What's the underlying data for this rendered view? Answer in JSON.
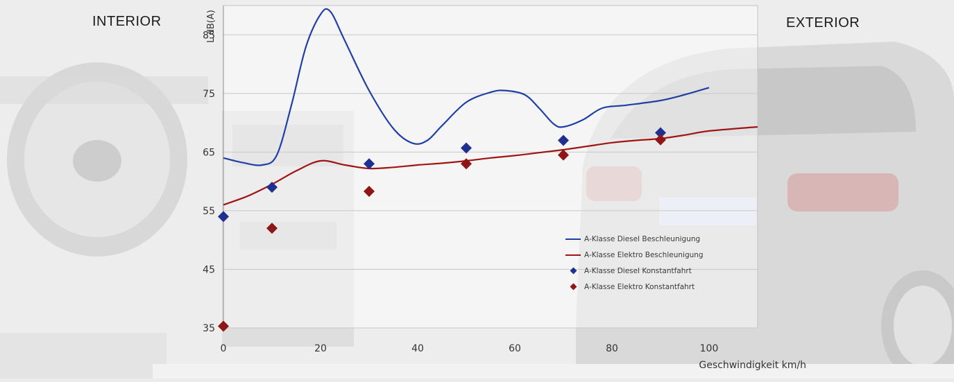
{
  "labels": {
    "interior": "INTERIOR",
    "exterior": "EXTERIOR"
  },
  "chart_data": {
    "type": "line",
    "title": "",
    "xlabel": "Geschwindigkeit km/h",
    "ylabel": "L dB(A)",
    "xlim": [
      0,
      110
    ],
    "ylim": [
      35,
      90
    ],
    "xticks": [
      0,
      20,
      40,
      60,
      80,
      100
    ],
    "yticks": [
      35,
      45,
      55,
      65,
      75,
      85
    ],
    "grid": true,
    "legend_position": "bottom-right",
    "series": [
      {
        "name": "A-Klasse Diesel Beschleunigung",
        "kind": "line",
        "color": "#1f3fa6",
        "x": [
          0,
          4,
          8,
          11,
          14,
          17,
          20,
          22,
          25,
          30,
          35,
          39,
          42,
          45,
          50,
          55,
          58,
          62,
          65,
          68,
          70,
          74,
          78,
          83,
          90,
          95,
          100
        ],
        "y": [
          64,
          63.2,
          62.8,
          64.5,
          73,
          83,
          88.5,
          89,
          84,
          75.5,
          69,
          66.5,
          67,
          69.5,
          73.5,
          75.2,
          75.5,
          74.8,
          72.5,
          69.8,
          69.3,
          70.5,
          72.5,
          73,
          73.8,
          74.8,
          76
        ]
      },
      {
        "name": "A-Klasse Elektro Beschleunigung",
        "kind": "line",
        "color": "#a01414",
        "x": [
          0,
          5,
          10,
          15,
          20,
          25,
          30,
          35,
          40,
          45,
          50,
          55,
          60,
          65,
          70,
          75,
          80,
          85,
          90,
          95,
          100,
          110
        ],
        "y": [
          56,
          57.5,
          59.5,
          61.8,
          63.5,
          62.8,
          62.2,
          62.4,
          62.8,
          63.1,
          63.5,
          64,
          64.4,
          64.9,
          65.4,
          66,
          66.6,
          67,
          67.3,
          67.9,
          68.6,
          69.3
        ]
      },
      {
        "name": "A-Klasse Diesel Konstantfahrt",
        "kind": "marker",
        "color": "#1f2f8f",
        "x": [
          0,
          10,
          30,
          50,
          70,
          90
        ],
        "y": [
          54,
          59,
          63,
          65.7,
          67,
          68.3
        ]
      },
      {
        "name": "A-Klasse Elektro Konstantfahrt",
        "kind": "marker",
        "color": "#8f1616",
        "x": [
          0,
          10,
          30,
          50,
          70,
          90
        ],
        "y": [
          35.3,
          52,
          58.3,
          63,
          64.5,
          67.1
        ]
      }
    ]
  }
}
